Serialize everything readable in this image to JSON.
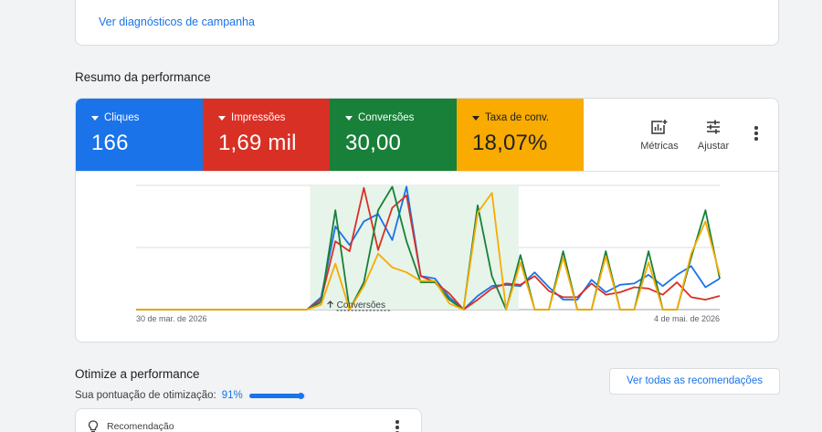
{
  "top_card": {
    "link": "Ver diagnósticos de campanha"
  },
  "performance": {
    "title": "Resumo da performance",
    "tiles": [
      {
        "label": "Cliques",
        "value": "166",
        "color": "#1a73e8"
      },
      {
        "label": "Impressões",
        "value": "1,69 mil",
        "color": "#d93025"
      },
      {
        "label": "Conversões",
        "value": "30,00",
        "color": "#188038"
      },
      {
        "label": "Taxa de conv.",
        "value": "18,07%",
        "color": "#f9ab00"
      }
    ],
    "tools": {
      "metrics": "Métricas",
      "adjust": "Ajustar"
    },
    "chart_annotation": "Conversões",
    "x_start": "30 de mar. de 2026",
    "x_end": "4 de mai. de 2026"
  },
  "chart_data": {
    "type": "line",
    "x_start": "30 de mar. de 2026",
    "x_end": "4 de mai. de 2026",
    "highlight_label": "Conversões",
    "grid": true,
    "ylim": [
      0,
      1
    ],
    "series": [
      {
        "name": "Cliques",
        "color": "#1a73e8",
        "values": [
          0,
          0,
          0,
          0,
          0,
          0,
          0,
          0,
          0,
          0,
          0,
          0,
          0,
          0.1,
          0.67,
          0.52,
          0.71,
          0.77,
          0.56,
          0.99,
          0.27,
          0.25,
          0.1,
          0,
          0.11,
          0.19,
          0.2,
          0.19,
          0.3,
          0.18,
          0.08,
          0.08,
          0.24,
          0.14,
          0.2,
          0.21,
          0.28,
          0.19,
          0.28,
          0.35,
          0.18,
          0.25
        ]
      },
      {
        "name": "Impressões",
        "color": "#d93025",
        "values": [
          0,
          0,
          0,
          0,
          0,
          0,
          0,
          0,
          0,
          0,
          0,
          0,
          0,
          0.08,
          0.55,
          0.47,
          0.98,
          0.48,
          0.82,
          0.92,
          0.27,
          0.22,
          0.13,
          0,
          0.08,
          0.17,
          0.21,
          0.2,
          0.27,
          0.15,
          0.1,
          0.1,
          0.21,
          0.12,
          0.14,
          0.18,
          0.17,
          0.12,
          0.22,
          0.1,
          0.08,
          0.11
        ]
      },
      {
        "name": "Conversões",
        "color": "#188038",
        "values": [
          0,
          0,
          0,
          0,
          0,
          0,
          0,
          0,
          0,
          0,
          0,
          0,
          0,
          0.06,
          0.8,
          0,
          0.22,
          0.8,
          0.99,
          0.55,
          0.22,
          0.22,
          0.08,
          0,
          0.84,
          0.27,
          0,
          0.44,
          0,
          0,
          0.47,
          0,
          0,
          0.47,
          0,
          0,
          0.47,
          0,
          0,
          0.42,
          0.8,
          0.25
        ]
      },
      {
        "name": "Taxa de conv.",
        "color": "#f9ab00",
        "values": [
          0,
          0,
          0,
          0,
          0,
          0,
          0,
          0,
          0,
          0,
          0,
          0,
          0,
          0.04,
          0.37,
          0,
          0.19,
          0.45,
          0.34,
          0.3,
          0.23,
          0.23,
          0.05,
          0,
          0.78,
          0.94,
          0,
          0.38,
          0,
          0,
          0.42,
          0,
          0,
          0.43,
          0,
          0,
          0.38,
          0,
          0,
          0.45,
          0.71,
          0.28
        ]
      }
    ],
    "highlight_from_index": 13,
    "highlight_to_index": 27
  },
  "optimize": {
    "title": "Otimize a performance",
    "score_label": "Sua pontuação de otimização:",
    "score_value": "91%",
    "score_fraction": 0.91,
    "all_recs_button": "Ver todas as recomendações",
    "rec_card_title": "Recomendação"
  }
}
